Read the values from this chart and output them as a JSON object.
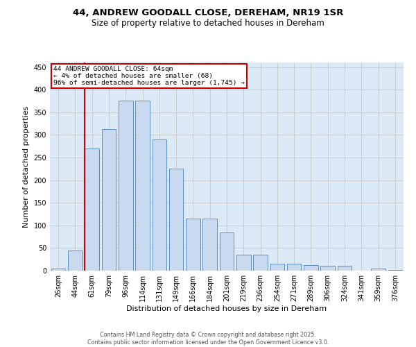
{
  "title1": "44, ANDREW GOODALL CLOSE, DEREHAM, NR19 1SR",
  "title2": "Size of property relative to detached houses in Dereham",
  "xlabel": "Distribution of detached houses by size in Dereham",
  "ylabel": "Number of detached properties",
  "categories": [
    "26sqm",
    "44sqm",
    "61sqm",
    "79sqm",
    "96sqm",
    "114sqm",
    "131sqm",
    "149sqm",
    "166sqm",
    "184sqm",
    "201sqm",
    "219sqm",
    "236sqm",
    "254sqm",
    "271sqm",
    "289sqm",
    "306sqm",
    "324sqm",
    "341sqm",
    "359sqm",
    "376sqm"
  ],
  "bar_heights": [
    5,
    45,
    270,
    313,
    375,
    375,
    290,
    225,
    115,
    115,
    85,
    35,
    35,
    15,
    15,
    13,
    10,
    10,
    0,
    5,
    2
  ],
  "bar_color": "#c9d9ef",
  "bar_edge_color": "#5b8fc9",
  "annotation_text": "44 ANDREW GOODALL CLOSE: 64sqm\n← 4% of detached houses are smaller (68)\n96% of semi-detached houses are larger (1,745) →",
  "annotation_box_facecolor": "#ffffff",
  "annotation_box_edgecolor": "#cc0000",
  "red_line_color": "#cc0000",
  "red_line_x": 1.575,
  "grid_color": "#cccccc",
  "bg_color": "#dce9f7",
  "ylim": [
    0,
    460
  ],
  "yticks": [
    0,
    50,
    100,
    150,
    200,
    250,
    300,
    350,
    400,
    450
  ],
  "title1_fontsize": 9.5,
  "title2_fontsize": 8.5,
  "xlabel_fontsize": 8.0,
  "ylabel_fontsize": 8.0,
  "tick_fontsize": 7.0,
  "footer_fontsize": 5.8,
  "footer1": "Contains HM Land Registry data © Crown copyright and database right 2025.",
  "footer2": "Contains public sector information licensed under the Open Government Licence v3.0."
}
